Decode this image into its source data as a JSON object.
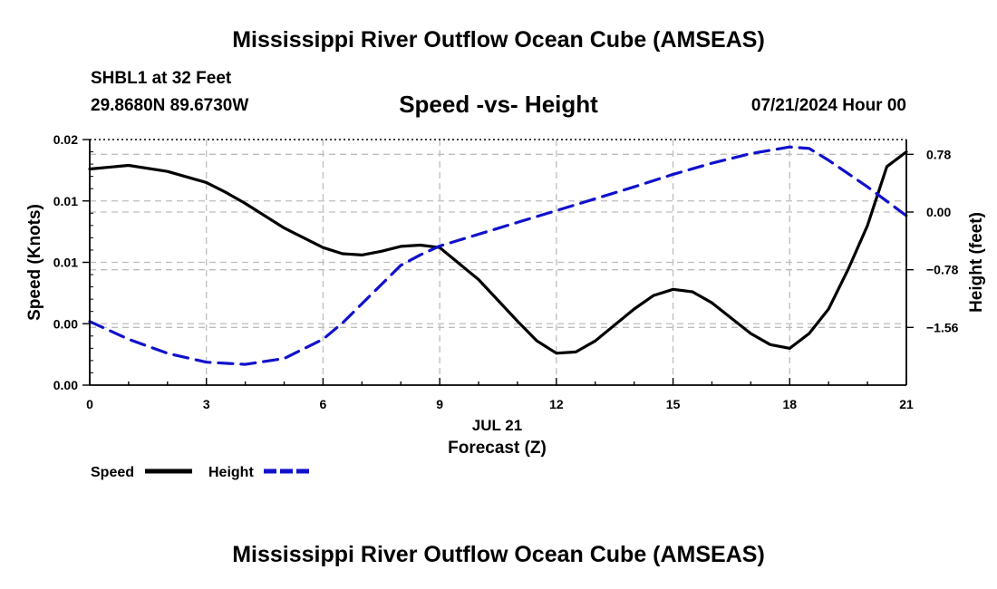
{
  "header": {
    "title": "Mississippi River Outflow Ocean Cube (AMSEAS)",
    "station": "SHBL1 at 32 Feet",
    "coords": "29.8680N  89.6730W",
    "subtitle": "Speed -vs- Height",
    "datetime": "07/21/2024 Hour 00"
  },
  "footer": {
    "title": "Mississippi River Outflow Ocean Cube (AMSEAS)"
  },
  "chart_data": {
    "type": "line",
    "title": "Speed -vs- Height",
    "xlabel": "Forecast (Z)",
    "date_label": "JUL 21",
    "ylabel": "Speed (Knots)",
    "y2label": "Height (feet)",
    "x_ticks": [
      0,
      3,
      6,
      9,
      12,
      15,
      18,
      21
    ],
    "x_tick_labels": [
      "0",
      "3",
      "6",
      "9",
      "12",
      "15",
      "18",
      "21"
    ],
    "xlim": [
      0,
      21
    ],
    "ylim": [
      0,
      0.02
    ],
    "y_ticks": [
      0,
      0.005,
      0.01,
      0.015,
      0.02
    ],
    "y_tick_labels": [
      "0.00",
      "0.00",
      "0.01",
      "0.01",
      "0.02"
    ],
    "y2lim": [
      -2.34,
      0.98
    ],
    "y2_ticks": [
      -1.56,
      -0.78,
      0.0,
      0.78
    ],
    "y2_tick_labels": [
      "−1.56",
      "−0.78",
      "0.00",
      "0.78"
    ],
    "grid": true,
    "legend_position": "bottom-left",
    "series": [
      {
        "name": "Speed",
        "axis": "left",
        "color": "#000000",
        "dash": "solid",
        "x": [
          0,
          1,
          2,
          3,
          3.5,
          4,
          5,
          6,
          6.5,
          7,
          7.5,
          8,
          8.5,
          9,
          10,
          11,
          11.5,
          12,
          12.5,
          13,
          14,
          14.5,
          15,
          15.5,
          16,
          17,
          17.5,
          18,
          18.5,
          19,
          19.5,
          20,
          20.5,
          21
        ],
        "values": [
          0.0176,
          0.0179,
          0.0174,
          0.0165,
          0.0157,
          0.0148,
          0.0128,
          0.0112,
          0.0107,
          0.0106,
          0.0109,
          0.0113,
          0.0114,
          0.0112,
          0.0086,
          0.0052,
          0.0036,
          0.0026,
          0.0027,
          0.0036,
          0.0062,
          0.0073,
          0.0078,
          0.0076,
          0.0067,
          0.0042,
          0.0033,
          0.003,
          0.0042,
          0.0062,
          0.0094,
          0.013,
          0.0178,
          0.019
        ]
      },
      {
        "name": "Height",
        "axis": "right",
        "color": "#1111cc",
        "dash": "dashed",
        "x": [
          0,
          1,
          2,
          3,
          4,
          5,
          6,
          6.5,
          7,
          7.5,
          8,
          8.5,
          9,
          10,
          11,
          12,
          13,
          14,
          15,
          16,
          17,
          18,
          18.5,
          19,
          20,
          21
        ],
        "values": [
          -1.48,
          -1.72,
          -1.91,
          -2.03,
          -2.06,
          -1.98,
          -1.72,
          -1.5,
          -1.24,
          -0.98,
          -0.72,
          -0.58,
          -0.46,
          -0.3,
          -0.14,
          0.02,
          0.18,
          0.34,
          0.51,
          0.66,
          0.79,
          0.88,
          0.86,
          0.7,
          0.34,
          -0.05
        ]
      }
    ]
  }
}
